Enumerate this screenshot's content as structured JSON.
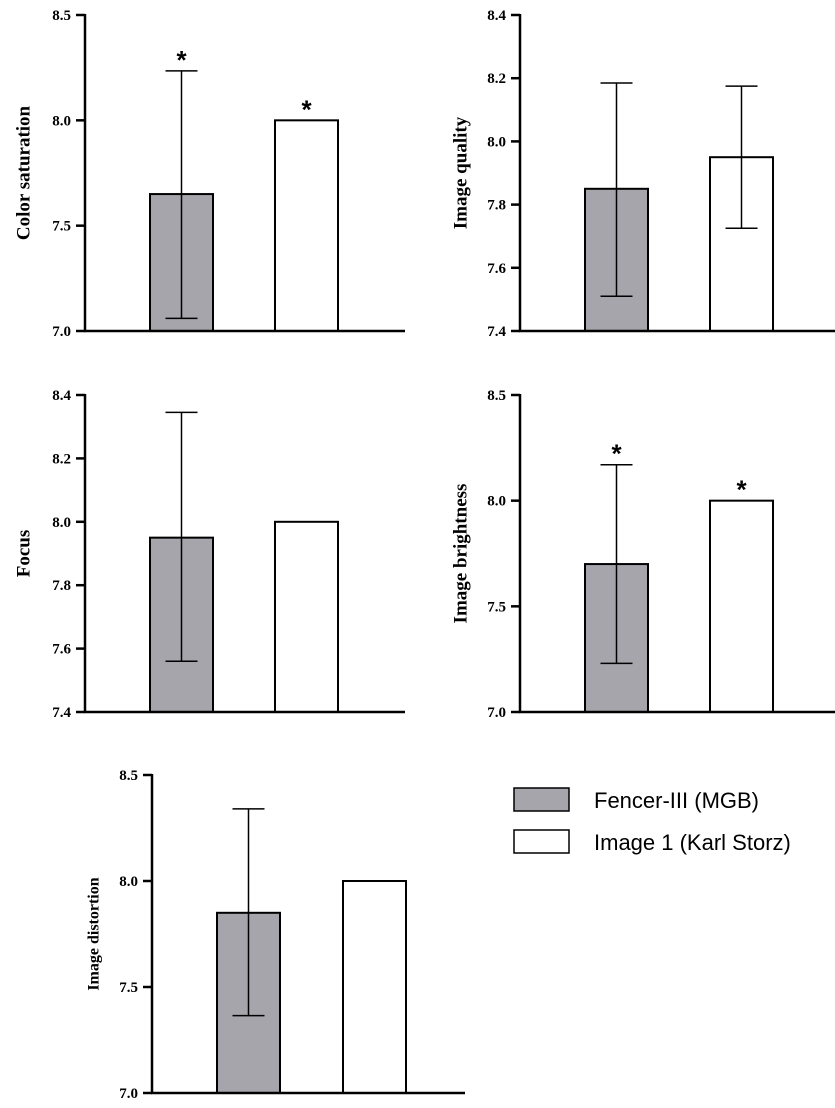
{
  "colors": {
    "fencer": "#a5a5ab",
    "storz": "#ffffff",
    "stroke": "#000000"
  },
  "legend": [
    {
      "label": "Fencer-III (MGB)",
      "color": "#a5a5ab"
    },
    {
      "label": "Image 1 (Karl Storz)",
      "color": "#ffffff"
    }
  ],
  "chart_data": [
    {
      "type": "bar",
      "ylabel": "Color saturation",
      "ylim": [
        7.0,
        8.5
      ],
      "yticks": [
        "7.0",
        "7.5",
        "8.0",
        "8.5"
      ],
      "series": [
        {
          "name": "Fencer-III (MGB)",
          "value": 7.65,
          "err_low": 7.06,
          "err_high": 8.235,
          "annotation": "*"
        },
        {
          "name": "Image 1 (Karl Storz)",
          "value": 8.0,
          "err_low": null,
          "err_high": null,
          "annotation": "*"
        }
      ]
    },
    {
      "type": "bar",
      "ylabel": "Image quality",
      "ylim": [
        7.4,
        8.4
      ],
      "yticks": [
        "7.4",
        "7.6",
        "7.8",
        "8.0",
        "8.2",
        "8.4"
      ],
      "series": [
        {
          "name": "Fencer-III (MGB)",
          "value": 7.85,
          "err_low": 7.51,
          "err_high": 8.185,
          "annotation": ""
        },
        {
          "name": "Image 1 (Karl Storz)",
          "value": 7.95,
          "err_low": 7.725,
          "err_high": 8.175,
          "annotation": ""
        }
      ]
    },
    {
      "type": "bar",
      "ylabel": "Focus",
      "ylim": [
        7.4,
        8.4
      ],
      "yticks": [
        "7.4",
        "7.6",
        "7.8",
        "8.0",
        "8.2",
        "8.4"
      ],
      "series": [
        {
          "name": "Fencer-III (MGB)",
          "value": 7.95,
          "err_low": 7.56,
          "err_high": 8.345,
          "annotation": ""
        },
        {
          "name": "Image 1 (Karl Storz)",
          "value": 8.0,
          "err_low": null,
          "err_high": null,
          "annotation": ""
        }
      ]
    },
    {
      "type": "bar",
      "ylabel": "Image brightness",
      "ylim": [
        7.0,
        8.5
      ],
      "yticks": [
        "7.0",
        "7.5",
        "8.0",
        "8.5"
      ],
      "series": [
        {
          "name": "Fencer-III (MGB)",
          "value": 7.7,
          "err_low": 7.23,
          "err_high": 8.17,
          "annotation": "*"
        },
        {
          "name": "Image 1 (Karl Storz)",
          "value": 8.0,
          "err_low": null,
          "err_high": null,
          "annotation": "*"
        }
      ]
    },
    {
      "type": "bar",
      "ylabel": "Image distortion",
      "ylim": [
        7.0,
        8.5
      ],
      "yticks": [
        "7.0",
        "7.5",
        "8.0",
        "8.5"
      ],
      "series": [
        {
          "name": "Fencer-III (MGB)",
          "value": 7.85,
          "err_low": 7.365,
          "err_high": 8.34,
          "annotation": ""
        },
        {
          "name": "Image 1 (Karl Storz)",
          "value": 8.0,
          "err_low": null,
          "err_high": null,
          "annotation": ""
        }
      ]
    }
  ]
}
